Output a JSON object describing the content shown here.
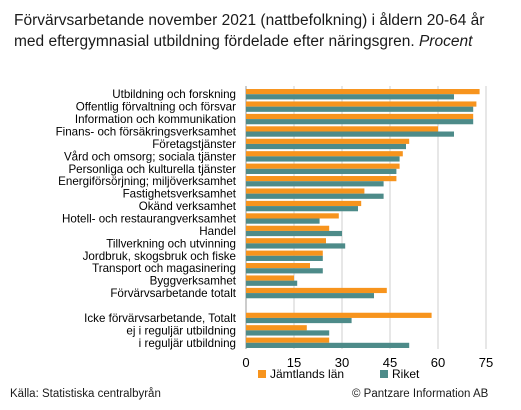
{
  "title": {
    "main": "Förvärvsarbetande november 2021 (nattbefolkning) i åldern 20-64 år med eftergymnasial utbildning fördelade efter näringsgren.",
    "unit": "Procent"
  },
  "footer": {
    "source": "Källa: Statistiska centralbyrån",
    "copyright": "© Pantzare Information AB"
  },
  "colors": {
    "jamtland": "#f7941d",
    "riket": "#4d8b89",
    "grid": "#cfcfcf"
  },
  "chart_data": {
    "type": "bar",
    "orientation": "horizontal",
    "categories": [
      "Utbildning och forskning",
      "Offentlig förvaltning och försvar",
      "Information och kommunikation",
      "Finans- och försäkringsverksamhet",
      "Företagstjänster",
      "Vård och omsorg; sociala tjänster",
      "Personliga och kulturella tjänster",
      "Energiförsörjning; miljöverksamhet",
      "Fastighetsverksamhet",
      "Okänd verksamhet",
      "Hotell- och restaurangverksamhet",
      "Handel",
      "Tillverkning och utvinning",
      "Jordbruk, skogsbruk och fiske",
      "Transport och magasinering",
      "Byggverksamhet",
      "Förvärvsarbetande totalt",
      "",
      "Icke förvärvsarbetande, Totalt",
      "ej i reguljär utbildning",
      "i reguljär utbildning"
    ],
    "series": [
      {
        "name": "Jämtlands län",
        "values": [
          73,
          72,
          71,
          60,
          51,
          49,
          48,
          47,
          37,
          36,
          29,
          26,
          25,
          24,
          20,
          15,
          44,
          null,
          58,
          19,
          26
        ]
      },
      {
        "name": "Riket",
        "values": [
          65,
          71,
          71,
          65,
          50,
          48,
          47,
          43,
          43,
          35,
          23,
          30,
          31,
          24,
          24,
          16,
          40,
          null,
          33,
          26,
          51
        ]
      }
    ],
    "xlim": [
      0,
      75
    ],
    "xticks": [
      "0",
      "15",
      "30",
      "45",
      "60",
      "75"
    ],
    "grid": true,
    "legend": "bottom"
  }
}
